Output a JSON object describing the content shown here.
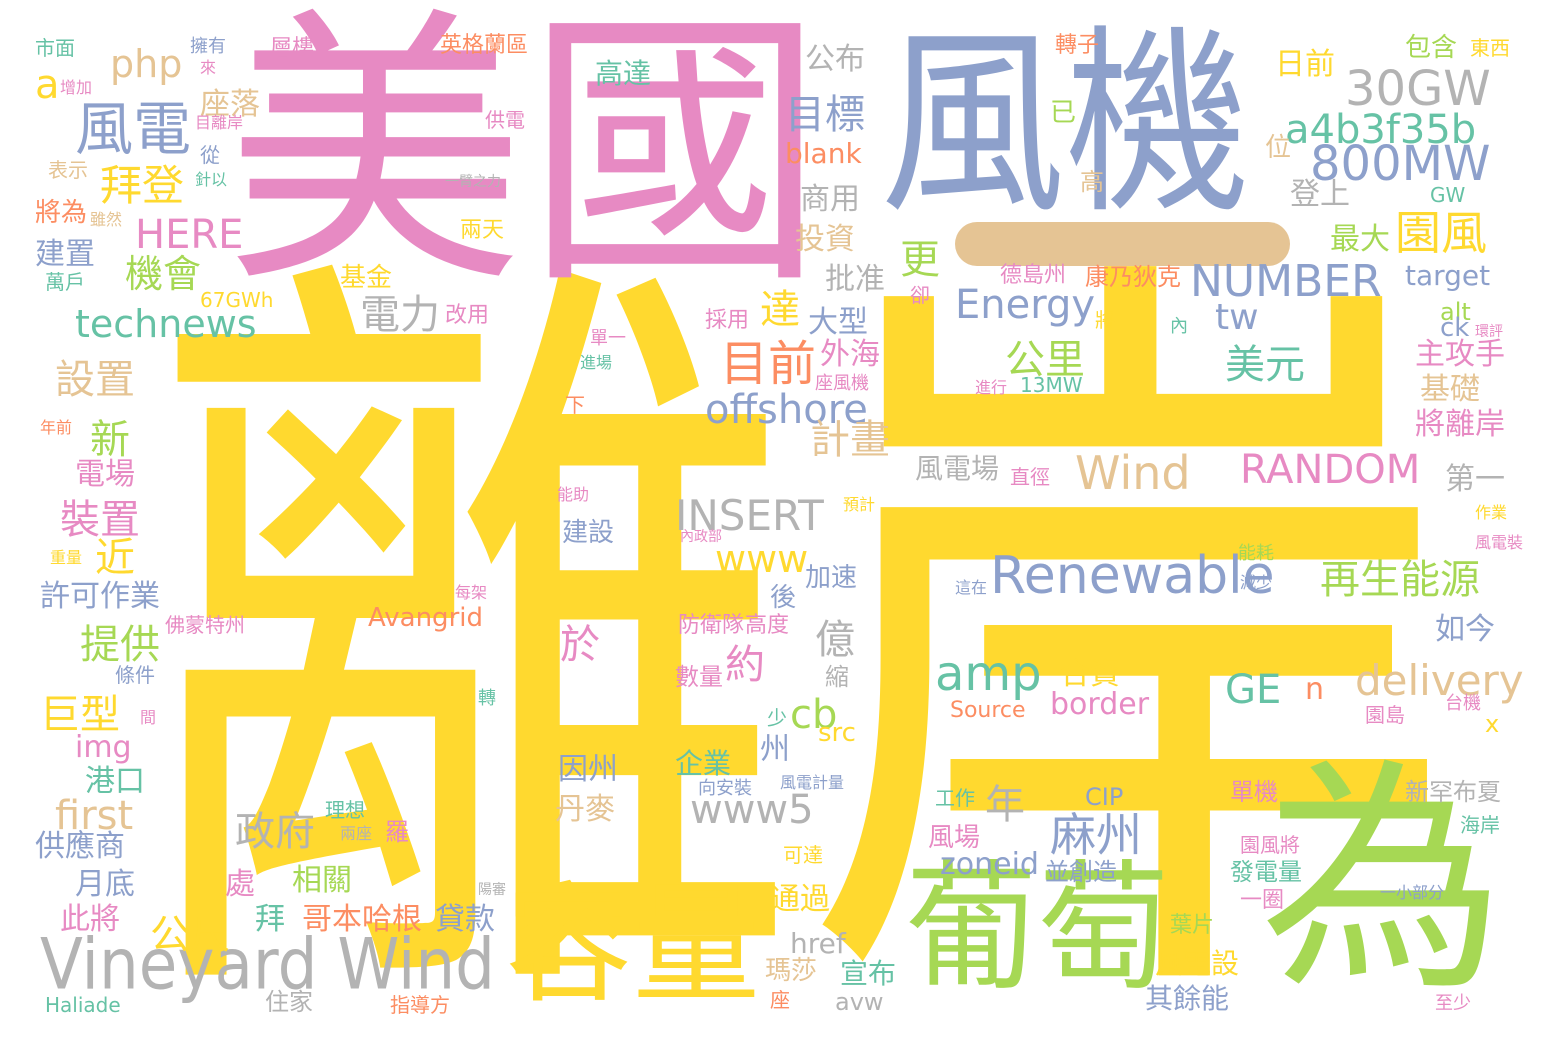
{
  "palette": {
    "yellow": "#ffd92f",
    "pink": "#e78ac3",
    "blue": "#8da0cb",
    "green": "#a6d854",
    "teal": "#66c2a5",
    "orange": "#fc8d62",
    "tan": "#e5c494",
    "grey": "#b3b3b3"
  },
  "words": [
    {
      "text": "離岸",
      "color": "yellow"
    },
    {
      "text": "美國",
      "color": "pink"
    },
    {
      "text": "風機",
      "color": "blue"
    },
    {
      "text": "為",
      "color": "green"
    },
    {
      "text": "葡萄",
      "color": "green"
    },
    {
      "text": "容量",
      "color": "yellow"
    },
    {
      "text": "Vineyard Wind",
      "color": "grey"
    },
    {
      "text": "風電",
      "color": "blue"
    },
    {
      "text": "拜登",
      "color": "yellow"
    },
    {
      "text": "HERE",
      "color": "pink"
    },
    {
      "text": "機會",
      "color": "green"
    },
    {
      "text": "technews",
      "color": "teal"
    },
    {
      "text": "php",
      "color": "tan"
    },
    {
      "text": "a",
      "color": "yellow"
    },
    {
      "text": "座落",
      "color": "tan"
    },
    {
      "text": "高達",
      "color": "teal"
    },
    {
      "text": "目標",
      "color": "blue"
    },
    {
      "text": "blank",
      "color": "orange"
    },
    {
      "text": "公布",
      "color": "grey"
    },
    {
      "text": "商用",
      "color": "grey"
    },
    {
      "text": "投資",
      "color": "tan"
    },
    {
      "text": "批准",
      "color": "grey"
    },
    {
      "text": "電力",
      "color": "grey"
    },
    {
      "text": "設置",
      "color": "tan"
    },
    {
      "text": "新",
      "color": "green"
    },
    {
      "text": "電場",
      "color": "pink"
    },
    {
      "text": "裝置",
      "color": "pink"
    },
    {
      "text": "近",
      "color": "yellow"
    },
    {
      "text": "許可作業",
      "color": "blue"
    },
    {
      "text": "提供",
      "color": "green"
    },
    {
      "text": "巨型",
      "color": "yellow"
    },
    {
      "text": "img",
      "color": "pink"
    },
    {
      "text": "港口",
      "color": "teal"
    },
    {
      "text": "first",
      "color": "tan"
    },
    {
      "text": "供應商",
      "color": "blue"
    },
    {
      "text": "月底",
      "color": "blue"
    },
    {
      "text": "此將",
      "color": "pink"
    },
    {
      "text": "公尺",
      "color": "yellow"
    },
    {
      "text": "30GW",
      "color": "grey"
    },
    {
      "text": "a4b3f35b",
      "color": "teal"
    },
    {
      "text": "800MW",
      "color": "blue"
    },
    {
      "text": "日前",
      "color": "yellow"
    },
    {
      "text": "登上",
      "color": "grey"
    },
    {
      "text": "最大",
      "color": "green"
    },
    {
      "text": "園風",
      "color": "yellow"
    },
    {
      "text": "NUMBER",
      "color": "blue"
    },
    {
      "text": "Energy",
      "color": "blue"
    },
    {
      "text": "tw",
      "color": "blue"
    },
    {
      "text": "更",
      "color": "green"
    },
    {
      "text": "達",
      "color": "yellow"
    },
    {
      "text": "大型",
      "color": "blue"
    },
    {
      "text": "外海",
      "color": "pink"
    },
    {
      "text": "目前",
      "color": "orange"
    },
    {
      "text": "公里",
      "color": "green"
    },
    {
      "text": "美元",
      "color": "teal"
    },
    {
      "text": "offshore",
      "color": "blue"
    },
    {
      "text": "計畫",
      "color": "tan"
    },
    {
      "text": "Wind",
      "color": "tan"
    },
    {
      "text": "RANDOM",
      "color": "pink"
    },
    {
      "text": "INSERT",
      "color": "grey"
    },
    {
      "text": "www",
      "color": "yellow"
    },
    {
      "text": "Renewable",
      "color": "blue"
    },
    {
      "text": "再生能源",
      "color": "green"
    },
    {
      "text": "amp",
      "color": "teal"
    },
    {
      "text": "約",
      "color": "pink"
    },
    {
      "text": "億",
      "color": "grey"
    },
    {
      "text": "cb",
      "color": "green"
    },
    {
      "text": "delivery",
      "color": "tan"
    },
    {
      "text": "GE",
      "color": "teal"
    },
    {
      "text": "n",
      "color": "orange"
    },
    {
      "text": "州",
      "color": "blue"
    },
    {
      "text": "www5",
      "color": "grey"
    },
    {
      "text": "年",
      "color": "grey"
    },
    {
      "text": "政府",
      "color": "grey"
    },
    {
      "text": "麻州",
      "color": "blue"
    },
    {
      "text": "zoneid",
      "color": "blue"
    },
    {
      "text": "border",
      "color": "pink"
    },
    {
      "text": "Avangrid",
      "color": "orange"
    },
    {
      "text": "風電場",
      "color": "grey"
    },
    {
      "text": "target",
      "color": "blue"
    },
    {
      "text": "主攻手",
      "color": "pink"
    },
    {
      "text": "基礎",
      "color": "tan"
    },
    {
      "text": "將離岸",
      "color": "pink"
    },
    {
      "text": "第一",
      "color": "grey"
    },
    {
      "text": "如今",
      "color": "blue"
    },
    {
      "text": "英格蘭區",
      "color": "orange"
    },
    {
      "text": "轉子",
      "color": "orange"
    },
    {
      "text": "包含",
      "color": "green"
    },
    {
      "text": "東西",
      "color": "yellow"
    },
    {
      "text": "層樓",
      "color": "pink"
    },
    {
      "text": "擁有",
      "color": "blue"
    },
    {
      "text": "市面",
      "color": "teal"
    },
    {
      "text": "增加",
      "color": "pink"
    },
    {
      "text": "供電",
      "color": "pink"
    },
    {
      "text": "表示",
      "color": "tan"
    },
    {
      "text": "將為",
      "color": "orange"
    },
    {
      "text": "建置",
      "color": "blue"
    },
    {
      "text": "萬戶",
      "color": "teal"
    },
    {
      "text": "基金",
      "color": "yellow"
    },
    {
      "text": "67GWh",
      "color": "yellow"
    },
    {
      "text": "改用",
      "color": "pink"
    },
    {
      "text": "兩天",
      "color": "yellow"
    },
    {
      "text": "德島州",
      "color": "pink"
    },
    {
      "text": "康乃狄克",
      "color": "orange"
    },
    {
      "text": "採用",
      "color": "pink"
    },
    {
      "text": "13MW",
      "color": "teal"
    },
    {
      "text": "合資",
      "color": "yellow"
    },
    {
      "text": "Source",
      "color": "orange"
    },
    {
      "text": "企業",
      "color": "teal"
    },
    {
      "text": "因州",
      "color": "blue"
    },
    {
      "text": "丹麥",
      "color": "tan"
    },
    {
      "text": "相關",
      "color": "green"
    },
    {
      "text": "拜",
      "color": "teal"
    },
    {
      "text": "哥本哈根",
      "color": "orange"
    },
    {
      "text": "貸款",
      "color": "blue"
    },
    {
      "text": "處",
      "color": "pink"
    },
    {
      "text": "通過",
      "color": "yellow"
    },
    {
      "text": "href",
      "color": "grey"
    },
    {
      "text": "瑪莎",
      "color": "tan"
    },
    {
      "text": "宣布",
      "color": "teal"
    },
    {
      "text": "avw",
      "color": "grey"
    },
    {
      "text": "風電設",
      "color": "yellow"
    },
    {
      "text": "其餘能",
      "color": "blue"
    },
    {
      "text": "風場",
      "color": "pink"
    },
    {
      "text": "並創造",
      "color": "blue"
    },
    {
      "text": "CIP",
      "color": "blue"
    },
    {
      "text": "理想",
      "color": "teal"
    },
    {
      "text": "單機",
      "color": "pink"
    },
    {
      "text": "新罕布夏",
      "color": "grey"
    },
    {
      "text": "海岸",
      "color": "teal"
    },
    {
      "text": "園風將",
      "color": "pink"
    },
    {
      "text": "發電量",
      "color": "teal"
    },
    {
      "text": "一圈",
      "color": "pink"
    },
    {
      "text": "葉片",
      "color": "green"
    },
    {
      "text": "至少",
      "color": "pink"
    },
    {
      "text": "alt",
      "color": "green"
    },
    {
      "text": "ck",
      "color": "blue"
    },
    {
      "text": "GW",
      "color": "teal"
    },
    {
      "text": "高",
      "color": "tan"
    },
    {
      "text": "已",
      "color": "green"
    },
    {
      "text": "位",
      "color": "tan"
    },
    {
      "text": "建設",
      "color": "blue"
    },
    {
      "text": "加速",
      "color": "blue"
    },
    {
      "text": "後",
      "color": "blue"
    },
    {
      "text": "高度",
      "color": "pink"
    },
    {
      "text": "防衛隊",
      "color": "pink"
    },
    {
      "text": "數量",
      "color": "pink"
    },
    {
      "text": "於",
      "color": "pink"
    },
    {
      "text": "縮",
      "color": "grey"
    },
    {
      "text": "住家",
      "color": "grey"
    },
    {
      "text": "指導方",
      "color": "orange"
    },
    {
      "text": "Haliade",
      "color": "teal"
    },
    {
      "text": "條件",
      "color": "blue"
    },
    {
      "text": "佛蒙特州",
      "color": "pink"
    },
    {
      "text": "轉",
      "color": "teal"
    },
    {
      "text": "台機",
      "color": "pink"
    },
    {
      "text": "x",
      "color": "yellow"
    },
    {
      "text": "園島",
      "color": "pink"
    },
    {
      "text": "工作",
      "color": "teal"
    },
    {
      "text": "從",
      "color": "blue"
    },
    {
      "text": "針以",
      "color": "teal"
    },
    {
      "text": "雖然",
      "color": "tan"
    },
    {
      "text": "一臂之力",
      "color": "grey"
    },
    {
      "text": "卻",
      "color": "pink"
    },
    {
      "text": "將",
      "color": "yellow"
    },
    {
      "text": "內",
      "color": "teal"
    },
    {
      "text": "進行",
      "color": "pink"
    },
    {
      "text": "單一",
      "color": "pink"
    },
    {
      "text": "進場",
      "color": "teal"
    },
    {
      "text": "座風機",
      "color": "pink"
    },
    {
      "text": "直徑",
      "color": "pink"
    },
    {
      "text": "預計",
      "color": "yellow"
    },
    {
      "text": "內政部",
      "color": "pink"
    },
    {
      "text": "能耗",
      "color": "green"
    },
    {
      "text": "減少",
      "color": "blue"
    },
    {
      "text": "這在",
      "color": "blue"
    },
    {
      "text": "下",
      "color": "orange"
    },
    {
      "text": "年前",
      "color": "orange"
    },
    {
      "text": "能助",
      "color": "pink"
    },
    {
      "text": "少",
      "color": "teal"
    },
    {
      "text": "每架",
      "color": "pink"
    },
    {
      "text": "重量",
      "color": "yellow"
    },
    {
      "text": "間",
      "color": "pink"
    },
    {
      "text": "羅",
      "color": "pink"
    },
    {
      "text": "陽審",
      "color": "grey"
    },
    {
      "text": "兩座",
      "color": "grey"
    },
    {
      "text": "可達",
      "color": "yellow"
    },
    {
      "text": "向安裝",
      "color": "blue"
    },
    {
      "text": "風電計量",
      "color": "blue"
    },
    {
      "text": "一小部分",
      "color": "blue"
    },
    {
      "text": "作業",
      "color": "yellow"
    },
    {
      "text": "風電裝",
      "color": "pink"
    },
    {
      "text": "環評",
      "color": "pink"
    },
    {
      "text": "座",
      "color": "orange"
    },
    {
      "text": "來",
      "color": "pink"
    },
    {
      "text": "目離岸",
      "color": "pink"
    },
    {
      "text": "src",
      "color": "yellow"
    }
  ]
}
